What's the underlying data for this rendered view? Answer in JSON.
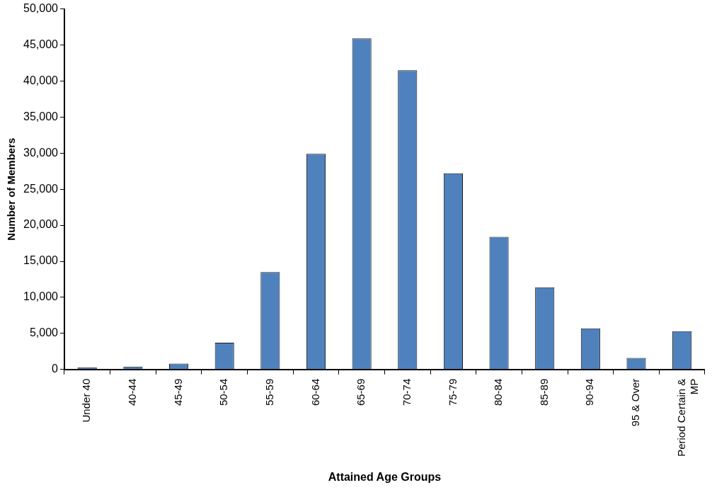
{
  "chart_data": {
    "type": "bar",
    "xlabel": "Attained Age Groups",
    "ylabel": "Number of Members",
    "categories": [
      "Under 40",
      "40-44",
      "45-49",
      "50-54",
      "55-59",
      "60-64",
      "65-69",
      "70-74",
      "75-79",
      "80-84",
      "85-89",
      "90-94",
      "95 & Over",
      "Period Certain & MP"
    ],
    "values": [
      300,
      400,
      800,
      3700,
      13500,
      29900,
      45900,
      41500,
      27200,
      18400,
      11400,
      5700,
      1600,
      5300
    ],
    "color": "#4f81bd",
    "ylim": [
      0,
      50000
    ],
    "yticks": [
      0,
      {
        "value": 5000,
        "label": "5,000"
      },
      {
        "value": 10000,
        "label": "10,000"
      },
      {
        "value": 15000,
        "label": "15,000"
      },
      {
        "value": 20000,
        "label": "20,000"
      },
      {
        "value": 25000,
        "label": "25,000"
      },
      {
        "value": 30000,
        "label": "30,000"
      },
      {
        "value": 35000,
        "label": "35,000"
      },
      {
        "value": 40000,
        "label": "40,000"
      },
      {
        "value": 45000,
        "label": "45,000"
      },
      {
        "value": 50000,
        "label": "50,000"
      }
    ],
    "grid": false,
    "legend": false
  }
}
